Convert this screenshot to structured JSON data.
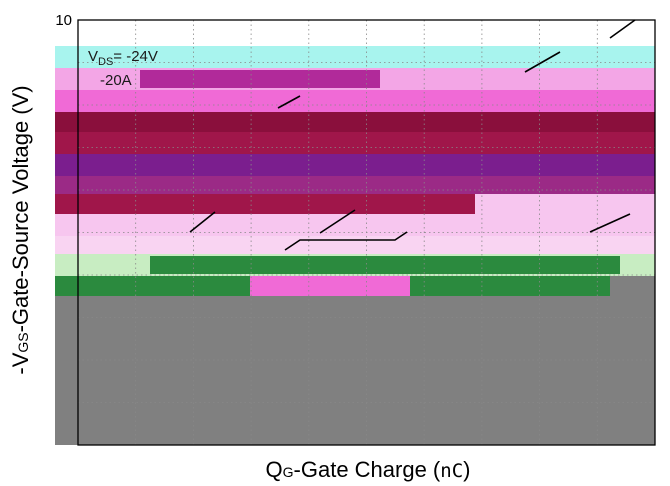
{
  "chart_data": {
    "type": "line",
    "xlabel": {
      "prefix": "Q",
      "sub": "G",
      "rest": "-Gate Charge (",
      "unit": "nC",
      "close": ")"
    },
    "ylabel": {
      "prefix": "-V",
      "sub": "GS",
      "rest": "-Gate-Source Voltage (V)"
    },
    "ylim": [
      0,
      10
    ],
    "y_ticks": [
      10
    ],
    "y_tick_labels": [
      "10"
    ],
    "grid": true,
    "annotations": [
      {
        "main": "V",
        "sub": "DS",
        "rest": "= -24V"
      },
      {
        "main": "-20A",
        "sub": "",
        "rest": ""
      }
    ],
    "colors": {
      "curve": "#000000",
      "grid": "#888888",
      "frame": "#000000",
      "artifact_pink": "#f06ad6",
      "artifact_cyan": "#a8f4ee",
      "artifact_purple": "#7b1e8e",
      "artifact_maroon": "#8a0f3c",
      "artifact_green": "#2b8a3e",
      "artifact_gray": "#808080"
    }
  }
}
